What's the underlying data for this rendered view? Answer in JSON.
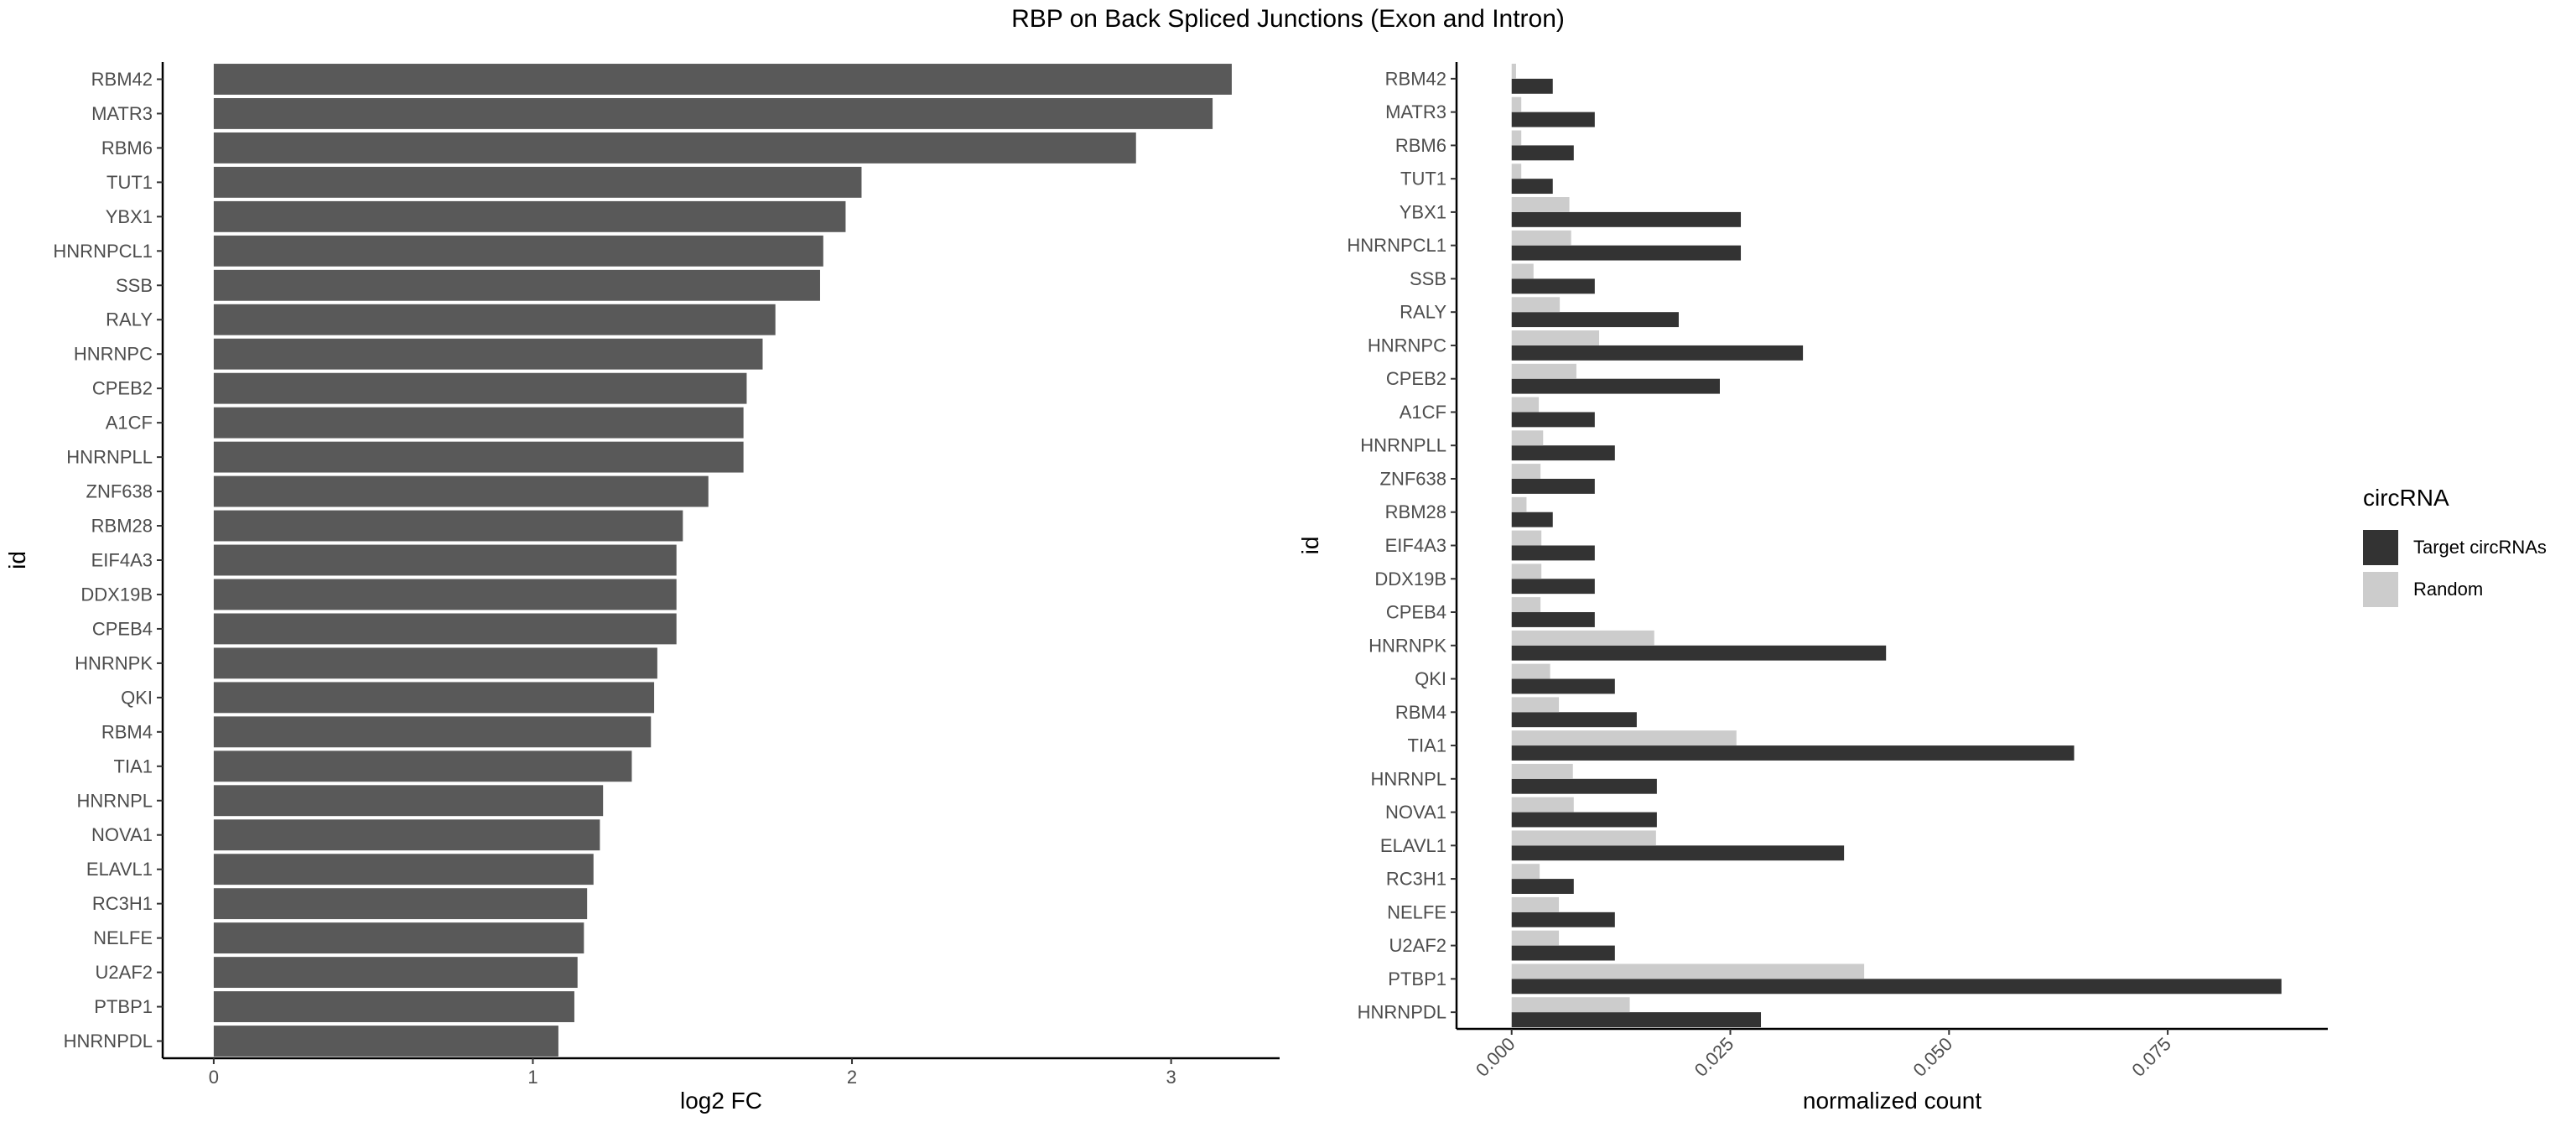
{
  "title": "RBP on Back Spliced Junctions (Exon and Intron)",
  "chart_data": [
    {
      "type": "bar",
      "orientation": "horizontal",
      "xlabel": "log2 FC",
      "ylabel": "id",
      "xlim": [
        -0.16,
        3.34
      ],
      "xticks": [
        0,
        1,
        2,
        3
      ],
      "grid": false,
      "bar_color": "#595959",
      "categories": [
        "RBM42",
        "MATR3",
        "RBM6",
        "TUT1",
        "YBX1",
        "HNRNPCL1",
        "SSB",
        "RALY",
        "HNRNPC",
        "CPEB2",
        "A1CF",
        "HNRNPLL",
        "ZNF638",
        "RBM28",
        "EIF4A3",
        "DDX19B",
        "CPEB4",
        "HNRNPK",
        "QKI",
        "RBM4",
        "TIA1",
        "HNRNPL",
        "NOVA1",
        "ELAVL1",
        "RC3H1",
        "NELFE",
        "U2AF2",
        "PTBP1",
        "HNRNPDL"
      ],
      "values": [
        3.19,
        3.13,
        2.89,
        2.03,
        1.98,
        1.91,
        1.9,
        1.76,
        1.72,
        1.67,
        1.66,
        1.66,
        1.55,
        1.47,
        1.45,
        1.45,
        1.45,
        1.39,
        1.38,
        1.37,
        1.31,
        1.22,
        1.21,
        1.19,
        1.17,
        1.16,
        1.14,
        1.13,
        1.08
      ]
    },
    {
      "type": "bar",
      "orientation": "horizontal",
      "grouped": true,
      "xlabel": "normalized count",
      "ylabel": "id",
      "xlim": [
        -0.0063,
        0.0933
      ],
      "xticks": [
        0.0,
        0.025,
        0.05,
        0.075
      ],
      "xtick_labels": [
        "0.000",
        "0.025",
        "0.050",
        "0.075"
      ],
      "grid": false,
      "legend_title": "circRNA",
      "legend_position": "right",
      "categories": [
        "RBM42",
        "MATR3",
        "RBM6",
        "TUT1",
        "YBX1",
        "HNRNPCL1",
        "SSB",
        "RALY",
        "HNRNPC",
        "CPEB2",
        "A1CF",
        "HNRNPLL",
        "ZNF638",
        "RBM28",
        "EIF4A3",
        "DDX19B",
        "CPEB4",
        "HNRNPK",
        "QKI",
        "RBM4",
        "TIA1",
        "HNRNPL",
        "NOVA1",
        "ELAVL1",
        "RC3H1",
        "NELFE",
        "U2AF2",
        "PTBP1",
        "HNRNPDL"
      ],
      "series": [
        {
          "name": "Target circRNAs",
          "color": "#333333",
          "values": [
            0.0047,
            0.0095,
            0.0071,
            0.0047,
            0.0262,
            0.0262,
            0.0095,
            0.0191,
            0.0333,
            0.0238,
            0.0095,
            0.0118,
            0.0095,
            0.0047,
            0.0095,
            0.0095,
            0.0095,
            0.0428,
            0.0118,
            0.0143,
            0.0643,
            0.0166,
            0.0166,
            0.038,
            0.0071,
            0.0118,
            0.0118,
            0.088,
            0.0285
          ]
        },
        {
          "name": "Random",
          "color": "#cccccc",
          "values": [
            0.0005,
            0.0011,
            0.0011,
            0.0011,
            0.0066,
            0.0068,
            0.0025,
            0.0055,
            0.01,
            0.0074,
            0.0031,
            0.0036,
            0.0033,
            0.0017,
            0.0034,
            0.0034,
            0.0033,
            0.0163,
            0.0044,
            0.0054,
            0.0257,
            0.007,
            0.0071,
            0.0165,
            0.0032,
            0.0054,
            0.0054,
            0.0403,
            0.0135
          ]
        }
      ]
    }
  ]
}
